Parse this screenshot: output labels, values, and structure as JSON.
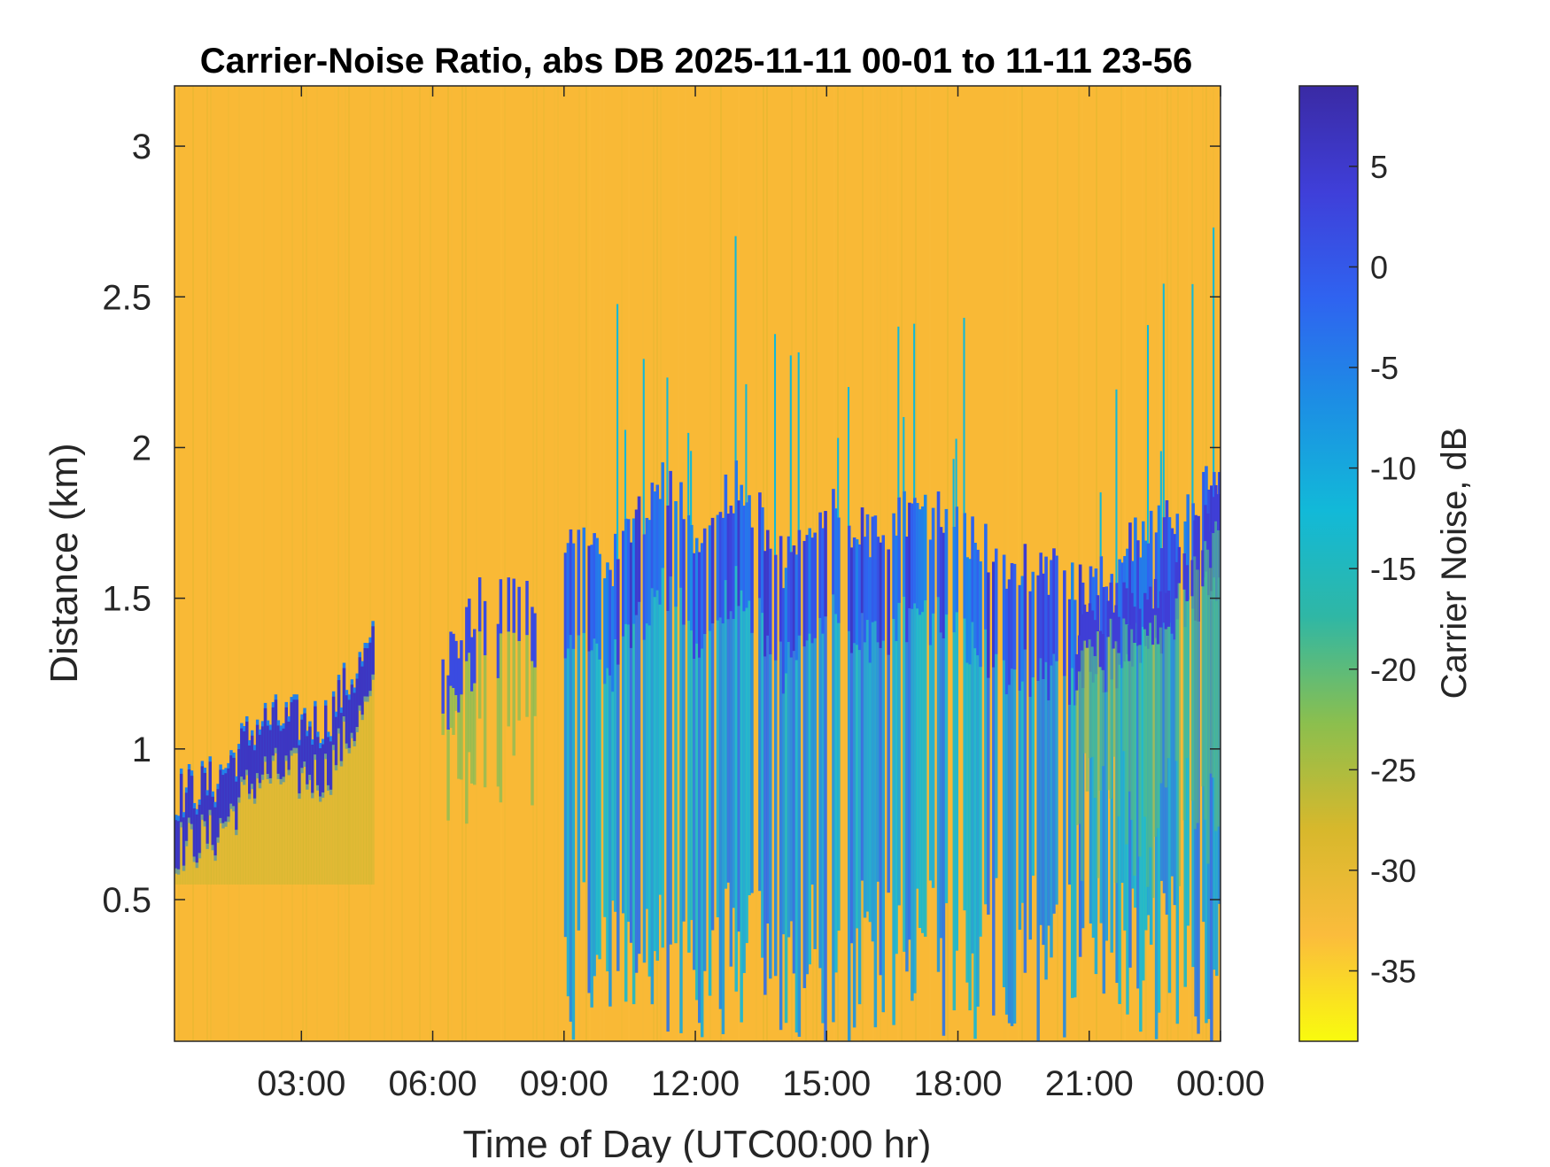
{
  "chart_data": {
    "type": "heatmap",
    "title": "Carrier-Noise Ratio, abs DB 2025-11-11 00-01 to 11-11 23-56",
    "xlabel": "Time of Day (UTC00:00 hr)",
    "ylabel": "Distance (km)",
    "colorbar_label": "Carrier Noise, dB",
    "xlim": [
      0.1,
      24
    ],
    "ylim": [
      0.03,
      3.2
    ],
    "clim": [
      -38.5,
      9
    ],
    "x_ticks": [
      3,
      6,
      9,
      12,
      15,
      18,
      21,
      24
    ],
    "x_tick_labels": [
      "03:00",
      "06:00",
      "09:00",
      "12:00",
      "15:00",
      "18:00",
      "21:00",
      "00:00"
    ],
    "y_ticks": [
      0.5,
      1,
      1.5,
      2,
      2.5,
      3
    ],
    "y_tick_labels": [
      "0.5",
      "1",
      "1.5",
      "2",
      "2.5",
      "3"
    ],
    "colorbar_ticks": [
      5,
      0,
      -5,
      -10,
      -15,
      -20,
      -25,
      -30,
      -35
    ],
    "colorbar_tick_labels": [
      "5",
      "0",
      "-5",
      "-10",
      "-15",
      "-20",
      "-25",
      "-30",
      "-35"
    ],
    "colormap": [
      "#f9fb0e",
      "#fbbc3c",
      "#d7b82c",
      "#8bbf4e",
      "#2fb7a5",
      "#12b9d8",
      "#1c8fe4",
      "#2f63f0",
      "#3f3fd9",
      "#3a2aa4"
    ],
    "background_level_db": -31,
    "features": [
      {
        "name": "boundary-layer top (strong return)",
        "time_hr": [
          0.1,
          1.0,
          2.0,
          3.0,
          3.5,
          4.0,
          4.6
        ],
        "top_km": [
          0.76,
          0.8,
          1.0,
          1.0,
          1.0,
          1.12,
          1.25
        ],
        "level_db": 6
      },
      {
        "name": "morning aerosol layer",
        "time_hr": [
          6.2,
          7.0,
          7.5,
          8.0,
          8.4
        ],
        "top_km": [
          1.25,
          1.5,
          1.5,
          1.52,
          1.5
        ],
        "level_db": 2
      },
      {
        "name": "daytime mixed layer",
        "time_hr": [
          9.0,
          10.0,
          11.0,
          11.5,
          12.0,
          13.0,
          14.0,
          15.0,
          16.0,
          17.0,
          18.0,
          19.0,
          20.0,
          21.0,
          22.0,
          23.0,
          24.0
        ],
        "top_km": [
          1.7,
          1.6,
          1.85,
          1.9,
          1.7,
          1.9,
          1.6,
          1.8,
          1.7,
          1.8,
          1.75,
          1.6,
          1.6,
          1.55,
          1.7,
          1.75,
          1.95
        ],
        "level_db": -8
      },
      {
        "name": "evening residual layer",
        "time_hr": [
          20.5,
          21.0,
          22.0,
          23.0,
          24.0
        ],
        "top_km": [
          1.35,
          1.45,
          1.5,
          1.6,
          1.85
        ],
        "level_db": 4
      }
    ]
  }
}
